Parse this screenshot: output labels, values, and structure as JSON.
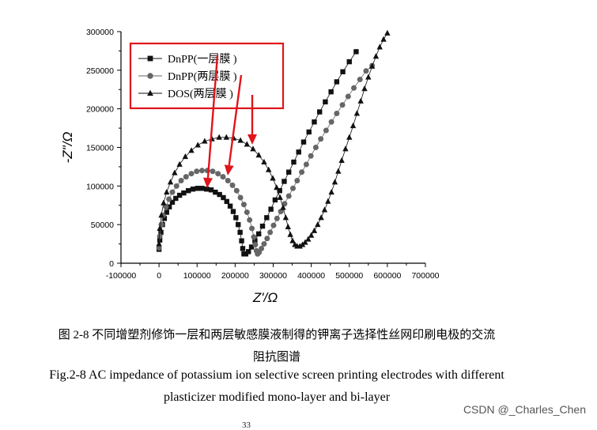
{
  "chart_data": {
    "type": "scatter",
    "xlabel": "Z'/Ω",
    "ylabel": "-Z\"/Ω",
    "xlim": [
      -100000,
      700000
    ],
    "ylim": [
      0,
      300000
    ],
    "xticks": [
      -100000,
      0,
      100000,
      200000,
      300000,
      400000,
      500000,
      600000,
      700000
    ],
    "yticks": [
      0,
      50000,
      100000,
      150000,
      200000,
      250000,
      300000
    ],
    "legend_position": "top-left",
    "legend_box_color": "#e0141b",
    "arrow_color": "#e0141b",
    "series": [
      {
        "name": "DnPP(一层膜 )",
        "marker": "square",
        "color": "#111111",
        "points": [
          [
            0,
            18000
          ],
          [
            2000,
            30000
          ],
          [
            5000,
            40000
          ],
          [
            9000,
            50000
          ],
          [
            14000,
            58000
          ],
          [
            20000,
            66000
          ],
          [
            27000,
            73000
          ],
          [
            35000,
            79000
          ],
          [
            44000,
            84000
          ],
          [
            54000,
            88000
          ],
          [
            65000,
            91000
          ],
          [
            77000,
            94000
          ],
          [
            89000,
            96000
          ],
          [
            101000,
            97000
          ],
          [
            113000,
            97000
          ],
          [
            125000,
            96000
          ],
          [
            137000,
            95000
          ],
          [
            148000,
            92000
          ],
          [
            159000,
            89000
          ],
          [
            169000,
            85000
          ],
          [
            178000,
            80000
          ],
          [
            187000,
            74000
          ],
          [
            195000,
            67000
          ],
          [
            202000,
            59000
          ],
          [
            208000,
            50000
          ],
          [
            213000,
            40000
          ],
          [
            217000,
            29000
          ],
          [
            220000,
            19000
          ],
          [
            223000,
            12000
          ],
          [
            228000,
            12000
          ],
          [
            235000,
            15000
          ],
          [
            243000,
            21000
          ],
          [
            252000,
            29000
          ],
          [
            262000,
            38000
          ],
          [
            272000,
            48000
          ],
          [
            283000,
            59000
          ],
          [
            294000,
            70000
          ],
          [
            305000,
            82000
          ],
          [
            317000,
            94000
          ],
          [
            329000,
            106000
          ],
          [
            341000,
            118000
          ],
          [
            354000,
            131000
          ],
          [
            367000,
            144000
          ],
          [
            380000,
            157000
          ],
          [
            394000,
            170000
          ],
          [
            408000,
            183000
          ],
          [
            422000,
            196000
          ],
          [
            437000,
            209000
          ],
          [
            452000,
            222000
          ],
          [
            467000,
            235000
          ],
          [
            483000,
            248000
          ],
          [
            500000,
            261000
          ],
          [
            518000,
            274000
          ]
        ]
      },
      {
        "name": "DnPP(两层膜 )",
        "marker": "circle",
        "color": "#666666",
        "points": [
          [
            0,
            20000
          ],
          [
            2000,
            35000
          ],
          [
            6000,
            50000
          ],
          [
            11000,
            62000
          ],
          [
            18000,
            73000
          ],
          [
            26000,
            83000
          ],
          [
            35000,
            92000
          ],
          [
            46000,
            100000
          ],
          [
            58000,
            107000
          ],
          [
            71000,
            112000
          ],
          [
            85000,
            116000
          ],
          [
            99000,
            119000
          ],
          [
            113000,
            120000
          ],
          [
            127000,
            120000
          ],
          [
            141000,
            119000
          ],
          [
            155000,
            116000
          ],
          [
            168000,
            112000
          ],
          [
            181000,
            107000
          ],
          [
            193000,
            101000
          ],
          [
            204000,
            94000
          ],
          [
            214000,
            85000
          ],
          [
            223000,
            76000
          ],
          [
            231000,
            66000
          ],
          [
            238000,
            56000
          ],
          [
            244000,
            45000
          ],
          [
            249000,
            34000
          ],
          [
            253000,
            24000
          ],
          [
            256000,
            16000
          ],
          [
            259000,
            12000
          ],
          [
            263000,
            14000
          ],
          [
            269000,
            19000
          ],
          [
            276000,
            25000
          ],
          [
            284000,
            32000
          ],
          [
            292000,
            40000
          ],
          [
            301000,
            49000
          ],
          [
            310000,
            58000
          ],
          [
            320000,
            67000
          ],
          [
            330000,
            77000
          ],
          [
            341000,
            87000
          ],
          [
            352000,
            97000
          ],
          [
            363000,
            107000
          ],
          [
            375000,
            118000
          ],
          [
            387000,
            128000
          ],
          [
            399000,
            139000
          ],
          [
            412000,
            150000
          ],
          [
            425000,
            161000
          ],
          [
            439000,
            172000
          ],
          [
            453000,
            183000
          ],
          [
            467000,
            194000
          ],
          [
            482000,
            205000
          ],
          [
            497000,
            216000
          ],
          [
            512000,
            227000
          ],
          [
            528000,
            238000
          ],
          [
            544000,
            249000
          ],
          [
            560000,
            256000
          ]
        ]
      },
      {
        "name": "DOS(两层膜 )",
        "marker": "triangle",
        "color": "#111111",
        "points": [
          [
            0,
            25000
          ],
          [
            2000,
            45000
          ],
          [
            6000,
            62000
          ],
          [
            12000,
            78000
          ],
          [
            20000,
            92000
          ],
          [
            30000,
            105000
          ],
          [
            41000,
            117000
          ],
          [
            54000,
            128000
          ],
          [
            69000,
            138000
          ],
          [
            85000,
            146000
          ],
          [
            102000,
            153000
          ],
          [
            120000,
            158000
          ],
          [
            139000,
            161000
          ],
          [
            158000,
            163000
          ],
          [
            177000,
            163000
          ],
          [
            196000,
            162000
          ],
          [
            214000,
            159000
          ],
          [
            231000,
            154000
          ],
          [
            247000,
            148000
          ],
          [
            262000,
            140000
          ],
          [
            276000,
            131000
          ],
          [
            288000,
            121000
          ],
          [
            299000,
            110000
          ],
          [
            309000,
            98000
          ],
          [
            318000,
            85000
          ],
          [
            326000,
            72000
          ],
          [
            333000,
            59000
          ],
          [
            339000,
            47000
          ],
          [
            345000,
            37000
          ],
          [
            351000,
            29000
          ],
          [
            357000,
            24000
          ],
          [
            363000,
            22000
          ],
          [
            370000,
            22000
          ],
          [
            377000,
            24000
          ],
          [
            384000,
            27000
          ],
          [
            392000,
            31000
          ],
          [
            400000,
            36000
          ],
          [
            408000,
            42000
          ],
          [
            417000,
            50000
          ],
          [
            426000,
            59000
          ],
          [
            435000,
            69000
          ],
          [
            444000,
            80000
          ],
          [
            453000,
            92000
          ],
          [
            462000,
            105000
          ],
          [
            471000,
            119000
          ],
          [
            480000,
            133000
          ],
          [
            490000,
            148000
          ],
          [
            500000,
            163000
          ],
          [
            510000,
            178000
          ],
          [
            520000,
            194000
          ],
          [
            530000,
            210000
          ],
          [
            540000,
            226000
          ],
          [
            550000,
            241000
          ],
          [
            560000,
            255000
          ],
          [
            570000,
            268000
          ],
          [
            580000,
            280000
          ],
          [
            590000,
            290000
          ],
          [
            600000,
            298000
          ]
        ]
      }
    ]
  },
  "caption": {
    "cn_line1": "图 2-8  不同增塑剂修饰一层和两层敏感膜液制得的钾离子选择性丝网印刷电极的交流",
    "cn_line2": "阻抗图谱",
    "en_line1": "Fig.2-8 AC impedance of potassium ion selective screen printing electrodes with different",
    "en_line2": "plasticizer modified mono-layer and bi-layer"
  },
  "watermark": "CSDN @_Charles_Chen",
  "page_number": "33"
}
